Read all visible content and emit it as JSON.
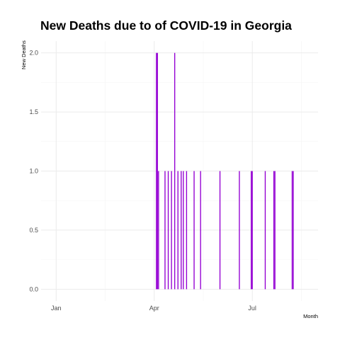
{
  "chart_data": {
    "type": "bar",
    "title": "New Deaths due to of COVID-19 in Georgia",
    "xlabel": "Month",
    "ylabel": "New Deaths",
    "x_tick_labels": [
      "Jan",
      "Apr",
      "Jul"
    ],
    "x_ticks": [
      "2020-01-01",
      "2020-04-01",
      "2020-07-01"
    ],
    "xlim": [
      "2019-12-18",
      "2020-08-31"
    ],
    "ylim": [
      -0.1,
      2.1
    ],
    "y_ticks": [
      0.0,
      0.5,
      1.0,
      1.5,
      2.0
    ],
    "y_tick_labels": [
      "0.0",
      "0.5",
      "1.0",
      "1.5",
      "2.0"
    ],
    "grid": true,
    "bar_color": "#9400D3",
    "dates": [
      "2020-04-03",
      "2020-04-04",
      "2020-04-05",
      "2020-04-11",
      "2020-04-14",
      "2020-04-17",
      "2020-04-20",
      "2020-04-23",
      "2020-04-26",
      "2020-04-28",
      "2020-05-01",
      "2020-05-08",
      "2020-05-14",
      "2020-06-01",
      "2020-06-19",
      "2020-06-30",
      "2020-07-01",
      "2020-07-13",
      "2020-07-21",
      "2020-07-22",
      "2020-08-07",
      "2020-08-08"
    ],
    "values": [
      2,
      2,
      1,
      1,
      1,
      1,
      2,
      1,
      1,
      1,
      1,
      1,
      1,
      1,
      1,
      1,
      1,
      1,
      1,
      1,
      1,
      1
    ]
  }
}
